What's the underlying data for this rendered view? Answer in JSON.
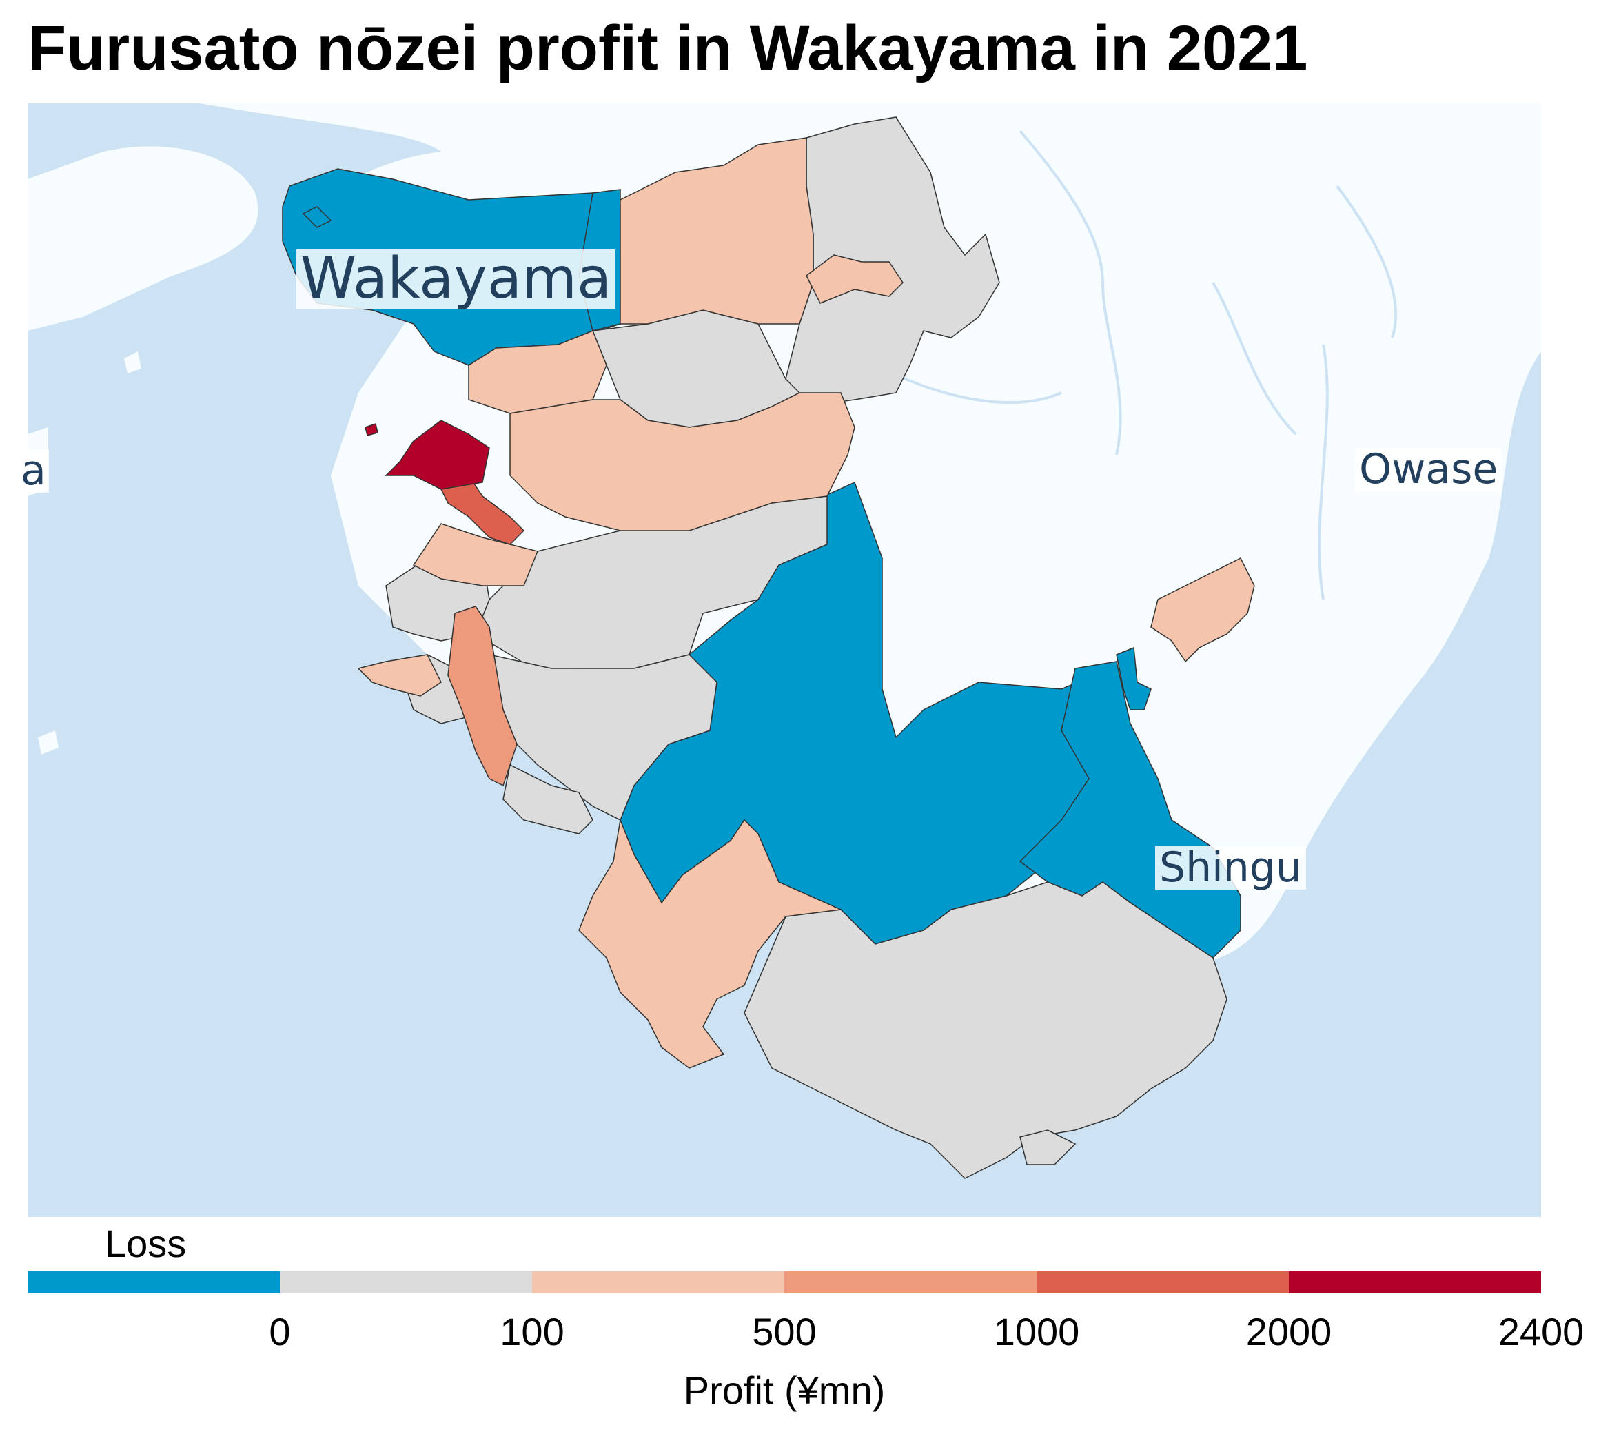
{
  "title": "Furusato nōzei profit in Wakayama in 2021",
  "colors": {
    "sea": "#cde3f4",
    "land": "#f7fcff",
    "loss": "#0099cc",
    "bin_0_100": "#dcdcdc",
    "bin_100_500": "#f4c5ac",
    "bin_500_1000": "#ee9a7c",
    "bin_1000_2000": "#dd5f4d",
    "bin_2000_2400": "#b2002a",
    "label_text": "#22405e"
  },
  "map": {
    "labels": {
      "wakayama": "Wakayama",
      "owase": "Owase",
      "shingu": "Shingu",
      "edge_fragment": "a"
    }
  },
  "legend": {
    "loss_label": "Loss",
    "title": "Profit (¥mn)",
    "ticks": [
      "0",
      "100",
      "500",
      "1000",
      "2000",
      "2400"
    ],
    "bins": [
      {
        "label": "Loss",
        "color": "#0099cc"
      },
      {
        "range": [
          0,
          100
        ],
        "color": "#dcdcdc"
      },
      {
        "range": [
          100,
          500
        ],
        "color": "#f4c5ac"
      },
      {
        "range": [
          500,
          1000
        ],
        "color": "#ee9a7c"
      },
      {
        "range": [
          1000,
          2000
        ],
        "color": "#dd5f4d"
      },
      {
        "range": [
          2000,
          2400
        ],
        "color": "#b2002a"
      }
    ]
  }
}
